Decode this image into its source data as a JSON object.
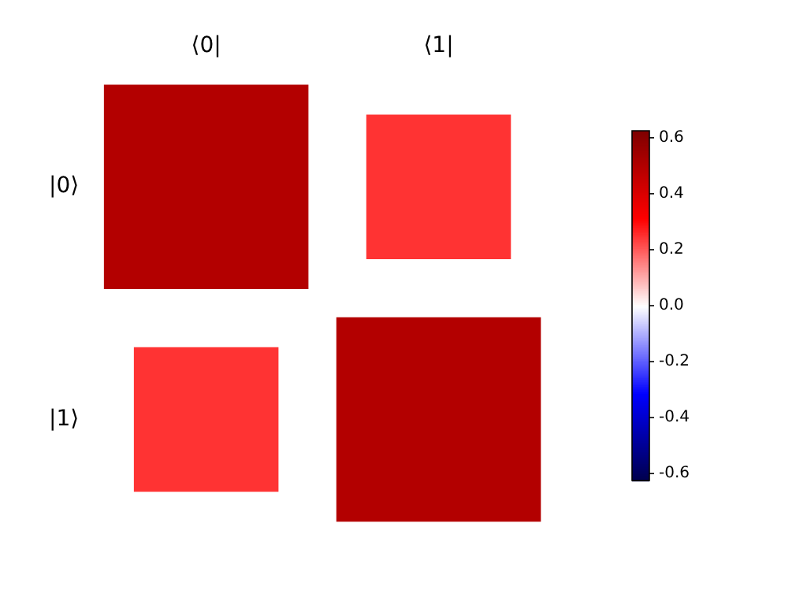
{
  "chart_data": {
    "type": "heatmap",
    "categories": [
      "⟨0|",
      "⟨1|"
    ],
    "y_categories": [
      "|0⟩",
      "|1⟩"
    ],
    "cells": [
      [
        0.5,
        0.25
      ],
      [
        0.25,
        0.5
      ]
    ],
    "clim": [
      -0.625,
      0.625
    ],
    "cticks": [
      -0.6,
      -0.4,
      -0.2,
      {
        "value": 0,
        "label": "0.0"
      },
      0.2,
      0.4,
      0.6
    ]
  }
}
